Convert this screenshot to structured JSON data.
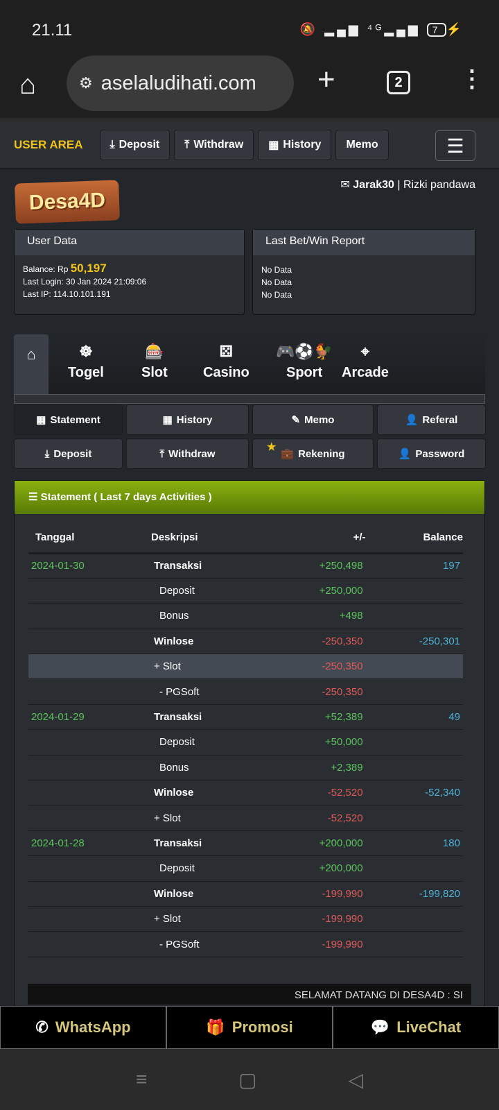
{
  "status": {
    "time": "21.11",
    "battery": "7"
  },
  "browser": {
    "url": "aselaludihati.com",
    "tab_count": "2"
  },
  "topnav": {
    "user_area": "USER AREA",
    "deposit": "Deposit",
    "withdraw": "Withdraw",
    "history": "History",
    "memo": "Memo"
  },
  "logo_text": "Desa4D",
  "user": {
    "username": "Jarak30",
    "name": "| Rizki pandawa"
  },
  "user_data": {
    "title": "User Data",
    "balance_label": "Balance: Rp",
    "balance": "50,197",
    "last_login": "Last Login: 30 Jan 2024 21:09:06",
    "last_ip": "Last IP: 114.10.101.191"
  },
  "report": {
    "title": "Last Bet/Win Report",
    "lines": [
      "No Data",
      "No Data",
      "No Data"
    ]
  },
  "categories": [
    "Togel",
    "Slot",
    "Casino",
    "Sport",
    "Arcade"
  ],
  "menu": [
    "Statement",
    "History",
    "Memo",
    "Referal",
    "Deposit",
    "Withdraw",
    "Rekening",
    "Password"
  ],
  "statement": {
    "title": "Statement ( Last 7 days Activities )",
    "headers": [
      "Tanggal",
      "Deskripsi",
      "+/-",
      "Balance"
    ],
    "rows": [
      [
        "2024-01-30",
        "Transaksi",
        "+250,498",
        "197"
      ],
      [
        "",
        "Deposit",
        "+250,000",
        ""
      ],
      [
        "",
        "Bonus",
        "+498",
        ""
      ],
      [
        "",
        "Winlose",
        "-250,350",
        "-250,301"
      ],
      [
        "",
        "+ Slot",
        "-250,350",
        ""
      ],
      [
        "",
        "- PGSoft",
        "-250,350",
        ""
      ],
      [
        "2024-01-29",
        "Transaksi",
        "+52,389",
        "49"
      ],
      [
        "",
        "Deposit",
        "+50,000",
        ""
      ],
      [
        "",
        "Bonus",
        "+2,389",
        ""
      ],
      [
        "",
        "Winlose",
        "-52,520",
        "-52,340"
      ],
      [
        "",
        "+ Slot",
        "-52,520",
        ""
      ],
      [
        "2024-01-28",
        "Transaksi",
        "+200,000",
        "180"
      ],
      [
        "",
        "Deposit",
        "+200,000",
        ""
      ],
      [
        "",
        "Winlose",
        "-199,990",
        "-199,820"
      ],
      [
        "",
        "+ Slot",
        "-199,990",
        ""
      ],
      [
        "",
        "- PGSoft",
        "-199,990",
        ""
      ]
    ]
  },
  "marquee": "SELAMAT DATANG DI DESA4D : SI",
  "footer": {
    "whatsapp": "WhatsApp",
    "promosi": "Promosi",
    "livechat": "LiveChat"
  }
}
